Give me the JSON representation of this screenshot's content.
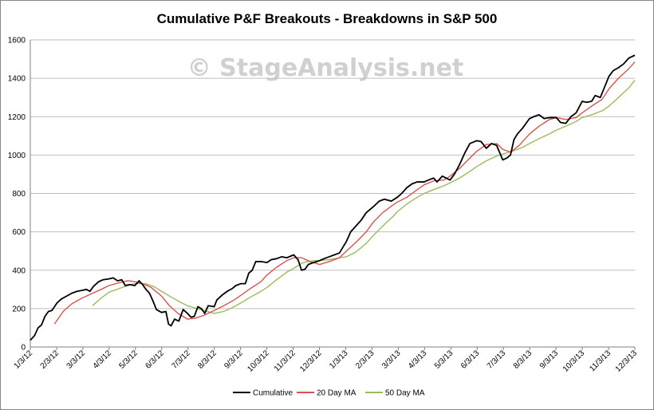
{
  "watermark": "© StageAnalysis.net",
  "chart_data": {
    "type": "line",
    "title": "Cumulative P&F Breakouts - Breakdowns in S&P 500",
    "xlabel": "",
    "ylabel": "",
    "ylim": [
      0,
      1600
    ],
    "yticks": [
      0,
      200,
      400,
      600,
      800,
      1000,
      1200,
      1400,
      1600
    ],
    "xlim": [
      "2012-01-03",
      "2013-12-03"
    ],
    "xticks": [
      "1/3/12",
      "2/3/12",
      "3/3/12",
      "4/3/12",
      "5/3/12",
      "6/3/12",
      "7/3/12",
      "8/3/12",
      "9/3/12",
      "10/3/12",
      "11/3/12",
      "12/3/12",
      "1/3/13",
      "2/3/13",
      "3/3/13",
      "4/3/13",
      "5/3/13",
      "6/3/13",
      "7/3/13",
      "8/3/13",
      "9/3/13",
      "10/3/13",
      "11/3/13",
      "12/3/13"
    ],
    "grid": "horizontal",
    "legend_position": "bottom",
    "series": [
      {
        "name": "Cumulative",
        "color": "#000000",
        "points": [
          [
            "2012-01-03",
            35
          ],
          [
            "2012-01-08",
            60
          ],
          [
            "2012-01-12",
            100
          ],
          [
            "2012-01-16",
            115
          ],
          [
            "2012-01-20",
            160
          ],
          [
            "2012-01-24",
            185
          ],
          [
            "2012-01-28",
            190
          ],
          [
            "2012-02-03",
            230
          ],
          [
            "2012-02-08",
            250
          ],
          [
            "2012-02-14",
            265
          ],
          [
            "2012-02-20",
            280
          ],
          [
            "2012-02-26",
            290
          ],
          [
            "2012-03-03",
            295
          ],
          [
            "2012-03-08",
            300
          ],
          [
            "2012-03-12",
            290
          ],
          [
            "2012-03-16",
            315
          ],
          [
            "2012-03-22",
            340
          ],
          [
            "2012-03-27",
            350
          ],
          [
            "2012-04-03",
            355
          ],
          [
            "2012-04-08",
            360
          ],
          [
            "2012-04-13",
            345
          ],
          [
            "2012-04-18",
            350
          ],
          [
            "2012-04-22",
            320
          ],
          [
            "2012-04-27",
            325
          ],
          [
            "2012-05-03",
            320
          ],
          [
            "2012-05-08",
            345
          ],
          [
            "2012-05-12",
            325
          ],
          [
            "2012-05-16",
            300
          ],
          [
            "2012-05-20",
            280
          ],
          [
            "2012-05-24",
            240
          ],
          [
            "2012-05-28",
            195
          ],
          [
            "2012-06-03",
            180
          ],
          [
            "2012-06-08",
            185
          ],
          [
            "2012-06-11",
            120
          ],
          [
            "2012-06-14",
            110
          ],
          [
            "2012-06-18",
            145
          ],
          [
            "2012-06-23",
            135
          ],
          [
            "2012-06-28",
            195
          ],
          [
            "2012-07-03",
            175
          ],
          [
            "2012-07-07",
            155
          ],
          [
            "2012-07-11",
            160
          ],
          [
            "2012-07-15",
            210
          ],
          [
            "2012-07-19",
            200
          ],
          [
            "2012-07-23",
            175
          ],
          [
            "2012-07-27",
            215
          ],
          [
            "2012-08-03",
            210
          ],
          [
            "2012-08-06",
            245
          ],
          [
            "2012-08-12",
            270
          ],
          [
            "2012-08-18",
            290
          ],
          [
            "2012-08-24",
            305
          ],
          [
            "2012-08-28",
            320
          ],
          [
            "2012-09-03",
            330
          ],
          [
            "2012-09-08",
            330
          ],
          [
            "2012-09-12",
            385
          ],
          [
            "2012-09-16",
            400
          ],
          [
            "2012-09-20",
            445
          ],
          [
            "2012-09-26",
            445
          ],
          [
            "2012-10-03",
            440
          ],
          [
            "2012-10-08",
            455
          ],
          [
            "2012-10-14",
            460
          ],
          [
            "2012-10-20",
            470
          ],
          [
            "2012-10-26",
            465
          ],
          [
            "2012-11-03",
            480
          ],
          [
            "2012-11-08",
            455
          ],
          [
            "2012-11-12",
            400
          ],
          [
            "2012-11-16",
            405
          ],
          [
            "2012-11-20",
            430
          ],
          [
            "2012-11-26",
            440
          ],
          [
            "2012-12-03",
            450
          ],
          [
            "2012-12-08",
            460
          ],
          [
            "2012-12-14",
            470
          ],
          [
            "2012-12-20",
            480
          ],
          [
            "2012-12-26",
            490
          ],
          [
            "2013-01-03",
            550
          ],
          [
            "2013-01-08",
            600
          ],
          [
            "2013-01-14",
            630
          ],
          [
            "2013-01-20",
            660
          ],
          [
            "2013-01-26",
            700
          ],
          [
            "2013-02-03",
            730
          ],
          [
            "2013-02-10",
            760
          ],
          [
            "2013-02-16",
            770
          ],
          [
            "2013-02-24",
            760
          ],
          [
            "2013-03-03",
            780
          ],
          [
            "2013-03-08",
            800
          ],
          [
            "2013-03-14",
            830
          ],
          [
            "2013-03-20",
            850
          ],
          [
            "2013-03-26",
            860
          ],
          [
            "2013-04-03",
            860
          ],
          [
            "2013-04-08",
            870
          ],
          [
            "2013-04-14",
            880
          ],
          [
            "2013-04-18",
            860
          ],
          [
            "2013-04-24",
            890
          ],
          [
            "2013-05-03",
            870
          ],
          [
            "2013-05-08",
            900
          ],
          [
            "2013-05-14",
            950
          ],
          [
            "2013-05-20",
            1010
          ],
          [
            "2013-05-26",
            1060
          ],
          [
            "2013-06-03",
            1075
          ],
          [
            "2013-06-08",
            1070
          ],
          [
            "2013-06-14",
            1035
          ],
          [
            "2013-06-20",
            1060
          ],
          [
            "2013-06-26",
            1050
          ],
          [
            "2013-07-03",
            975
          ],
          [
            "2013-07-08",
            985
          ],
          [
            "2013-07-12",
            1000
          ],
          [
            "2013-07-16",
            1080
          ],
          [
            "2013-07-20",
            1110
          ],
          [
            "2013-07-26",
            1140
          ],
          [
            "2013-08-03",
            1190
          ],
          [
            "2013-08-08",
            1200
          ],
          [
            "2013-08-14",
            1210
          ],
          [
            "2013-08-20",
            1190
          ],
          [
            "2013-08-26",
            1195
          ],
          [
            "2013-09-03",
            1195
          ],
          [
            "2013-09-08",
            1170
          ],
          [
            "2013-09-14",
            1165
          ],
          [
            "2013-09-20",
            1200
          ],
          [
            "2013-09-26",
            1220
          ],
          [
            "2013-10-03",
            1280
          ],
          [
            "2013-10-08",
            1275
          ],
          [
            "2013-10-14",
            1280
          ],
          [
            "2013-10-18",
            1310
          ],
          [
            "2013-10-24",
            1300
          ],
          [
            "2013-11-03",
            1410
          ],
          [
            "2013-11-08",
            1440
          ],
          [
            "2013-11-14",
            1455
          ],
          [
            "2013-11-20",
            1475
          ],
          [
            "2013-11-26",
            1505
          ],
          [
            "2013-12-03",
            1520
          ]
        ]
      },
      {
        "name": "20 Day MA",
        "color": "#d9534f",
        "points": [
          [
            "2012-01-31",
            120
          ],
          [
            "2012-02-10",
            185
          ],
          [
            "2012-02-20",
            225
          ],
          [
            "2012-03-03",
            255
          ],
          [
            "2012-03-15",
            280
          ],
          [
            "2012-03-25",
            300
          ],
          [
            "2012-04-03",
            320
          ],
          [
            "2012-04-15",
            335
          ],
          [
            "2012-04-25",
            345
          ],
          [
            "2012-05-03",
            340
          ],
          [
            "2012-05-12",
            330
          ],
          [
            "2012-05-22",
            310
          ],
          [
            "2012-06-03",
            265
          ],
          [
            "2012-06-12",
            215
          ],
          [
            "2012-06-22",
            175
          ],
          [
            "2012-07-03",
            145
          ],
          [
            "2012-07-12",
            150
          ],
          [
            "2012-07-22",
            165
          ],
          [
            "2012-08-03",
            190
          ],
          [
            "2012-08-14",
            215
          ],
          [
            "2012-08-26",
            245
          ],
          [
            "2012-09-03",
            270
          ],
          [
            "2012-09-14",
            305
          ],
          [
            "2012-09-26",
            340
          ],
          [
            "2012-10-03",
            375
          ],
          [
            "2012-10-14",
            415
          ],
          [
            "2012-10-26",
            450
          ],
          [
            "2012-11-03",
            465
          ],
          [
            "2012-11-12",
            465
          ],
          [
            "2012-11-22",
            445
          ],
          [
            "2012-12-03",
            430
          ],
          [
            "2012-12-14",
            445
          ],
          [
            "2012-12-26",
            465
          ],
          [
            "2013-01-03",
            500
          ],
          [
            "2013-01-14",
            545
          ],
          [
            "2013-01-26",
            600
          ],
          [
            "2013-02-03",
            650
          ],
          [
            "2013-02-14",
            700
          ],
          [
            "2013-02-26",
            740
          ],
          [
            "2013-03-03",
            755
          ],
          [
            "2013-03-14",
            780
          ],
          [
            "2013-03-26",
            820
          ],
          [
            "2013-04-03",
            845
          ],
          [
            "2013-04-14",
            865
          ],
          [
            "2013-04-26",
            870
          ],
          [
            "2013-05-03",
            890
          ],
          [
            "2013-05-14",
            930
          ],
          [
            "2013-05-26",
            985
          ],
          [
            "2013-06-03",
            1020
          ],
          [
            "2013-06-14",
            1055
          ],
          [
            "2013-06-26",
            1060
          ],
          [
            "2013-07-03",
            1030
          ],
          [
            "2013-07-12",
            1015
          ],
          [
            "2013-07-22",
            1050
          ],
          [
            "2013-08-03",
            1110
          ],
          [
            "2013-08-14",
            1150
          ],
          [
            "2013-08-26",
            1185
          ],
          [
            "2013-09-03",
            1195
          ],
          [
            "2013-09-14",
            1185
          ],
          [
            "2013-09-26",
            1195
          ],
          [
            "2013-10-03",
            1220
          ],
          [
            "2013-10-14",
            1255
          ],
          [
            "2013-10-26",
            1290
          ],
          [
            "2013-11-03",
            1345
          ],
          [
            "2013-11-14",
            1400
          ],
          [
            "2013-11-26",
            1450
          ],
          [
            "2013-12-03",
            1485
          ]
        ]
      },
      {
        "name": "50 Day MA",
        "color": "#9bbb59",
        "points": [
          [
            "2012-03-15",
            215
          ],
          [
            "2012-03-25",
            255
          ],
          [
            "2012-04-03",
            285
          ],
          [
            "2012-04-15",
            305
          ],
          [
            "2012-04-25",
            320
          ],
          [
            "2012-05-03",
            330
          ],
          [
            "2012-05-15",
            330
          ],
          [
            "2012-05-25",
            315
          ],
          [
            "2012-06-03",
            290
          ],
          [
            "2012-06-14",
            260
          ],
          [
            "2012-06-26",
            230
          ],
          [
            "2012-07-03",
            215
          ],
          [
            "2012-07-14",
            200
          ],
          [
            "2012-07-26",
            185
          ],
          [
            "2012-08-03",
            175
          ],
          [
            "2012-08-14",
            185
          ],
          [
            "2012-08-26",
            210
          ],
          [
            "2012-09-03",
            230
          ],
          [
            "2012-09-14",
            260
          ],
          [
            "2012-09-26",
            290
          ],
          [
            "2012-10-03",
            310
          ],
          [
            "2012-10-14",
            350
          ],
          [
            "2012-10-26",
            390
          ],
          [
            "2012-11-03",
            410
          ],
          [
            "2012-11-14",
            440
          ],
          [
            "2012-11-26",
            450
          ],
          [
            "2012-12-03",
            450
          ],
          [
            "2012-12-14",
            455
          ],
          [
            "2012-12-26",
            465
          ],
          [
            "2013-01-03",
            470
          ],
          [
            "2013-01-14",
            495
          ],
          [
            "2013-01-26",
            540
          ],
          [
            "2013-02-03",
            580
          ],
          [
            "2013-02-14",
            630
          ],
          [
            "2013-02-26",
            680
          ],
          [
            "2013-03-03",
            705
          ],
          [
            "2013-03-14",
            745
          ],
          [
            "2013-03-26",
            780
          ],
          [
            "2013-04-03",
            800
          ],
          [
            "2013-04-14",
            820
          ],
          [
            "2013-04-26",
            840
          ],
          [
            "2013-05-03",
            855
          ],
          [
            "2013-05-14",
            880
          ],
          [
            "2013-05-26",
            915
          ],
          [
            "2013-06-03",
            940
          ],
          [
            "2013-06-14",
            970
          ],
          [
            "2013-06-26",
            995
          ],
          [
            "2013-07-03",
            1005
          ],
          [
            "2013-07-14",
            1020
          ],
          [
            "2013-07-26",
            1040
          ],
          [
            "2013-08-03",
            1060
          ],
          [
            "2013-08-14",
            1085
          ],
          [
            "2013-08-26",
            1110
          ],
          [
            "2013-09-03",
            1130
          ],
          [
            "2013-09-14",
            1150
          ],
          [
            "2013-09-26",
            1175
          ],
          [
            "2013-10-03",
            1195
          ],
          [
            "2013-10-14",
            1210
          ],
          [
            "2013-10-26",
            1230
          ],
          [
            "2013-11-03",
            1255
          ],
          [
            "2013-11-14",
            1300
          ],
          [
            "2013-11-26",
            1350
          ],
          [
            "2013-12-03",
            1390
          ]
        ]
      }
    ]
  }
}
